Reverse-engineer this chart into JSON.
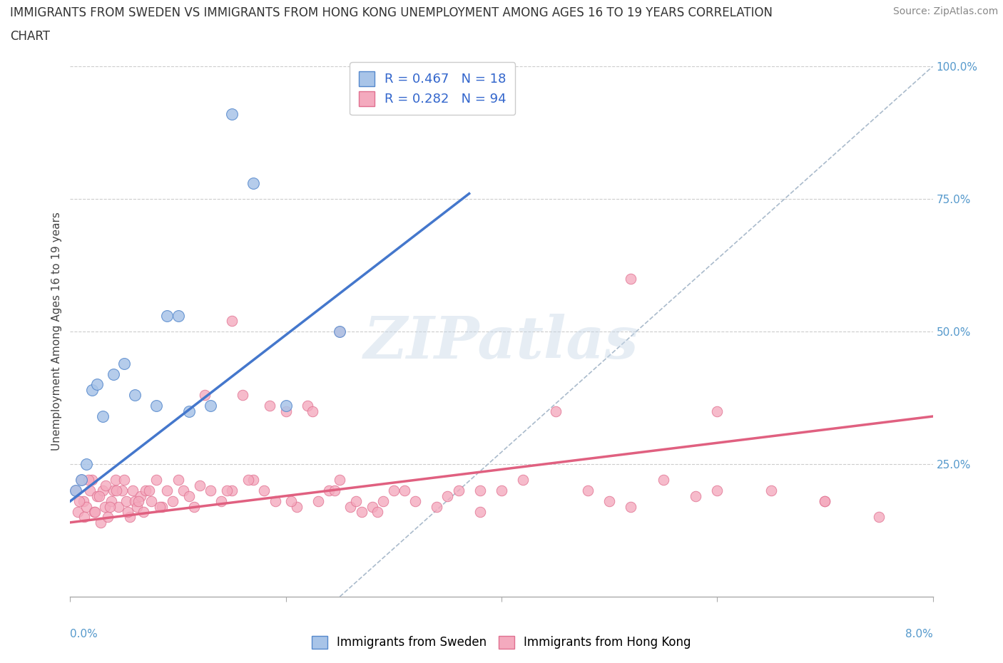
{
  "title_line1": "IMMIGRANTS FROM SWEDEN VS IMMIGRANTS FROM HONG KONG UNEMPLOYMENT AMONG AGES 16 TO 19 YEARS CORRELATION",
  "title_line2": "CHART",
  "source": "Source: ZipAtlas.com",
  "ylabel": "Unemployment Among Ages 16 to 19 years",
  "xlim": [
    0.0,
    8.0
  ],
  "ylim": [
    0.0,
    100.0
  ],
  "yticks": [
    0,
    25,
    50,
    75,
    100
  ],
  "ytick_labels": [
    "",
    "25.0%",
    "50.0%",
    "75.0%",
    "100.0%"
  ],
  "xtick_positions": [
    0.0,
    2.0,
    4.0,
    6.0,
    8.0
  ],
  "sweden_color": "#a8c4e8",
  "sweden_edge": "#5588cc",
  "hk_color": "#f4aabe",
  "hk_edge": "#e07090",
  "sweden_line_color": "#4477cc",
  "hk_line_color": "#e06080",
  "ref_line_color": "#aabbcc",
  "legend_sweden_label": "R = 0.467   N = 18",
  "legend_hk_label": "R = 0.282   N = 94",
  "sweden_scatter_x": [
    0.05,
    0.1,
    0.15,
    0.2,
    0.25,
    0.3,
    0.4,
    0.5,
    0.6,
    0.8,
    0.9,
    1.0,
    1.1,
    1.3,
    1.5,
    1.7,
    2.0,
    2.5
  ],
  "sweden_scatter_y": [
    20,
    22,
    25,
    39,
    40,
    34,
    42,
    44,
    38,
    36,
    53,
    53,
    35,
    36,
    91,
    78,
    36,
    50
  ],
  "sweden_line_x0": 0.0,
  "sweden_line_y0": 18,
  "sweden_line_x1": 3.7,
  "sweden_line_y1": 76,
  "hk_line_x0": 0.0,
  "hk_line_y0": 14,
  "hk_line_x1": 8.0,
  "hk_line_y1": 34,
  "ref_line_x0": 2.5,
  "ref_line_y0": 0,
  "ref_line_x1": 8.0,
  "ref_line_y1": 100,
  "hk_scatter_x": [
    0.05,
    0.07,
    0.1,
    0.12,
    0.15,
    0.18,
    0.2,
    0.22,
    0.25,
    0.28,
    0.3,
    0.32,
    0.35,
    0.38,
    0.4,
    0.42,
    0.45,
    0.48,
    0.5,
    0.52,
    0.55,
    0.58,
    0.6,
    0.62,
    0.65,
    0.68,
    0.7,
    0.75,
    0.8,
    0.85,
    0.9,
    0.95,
    1.0,
    1.05,
    1.1,
    1.15,
    1.2,
    1.3,
    1.4,
    1.5,
    1.6,
    1.7,
    1.8,
    1.9,
    2.0,
    2.1,
    2.2,
    2.3,
    2.4,
    2.5,
    2.6,
    2.7,
    2.8,
    2.9,
    3.0,
    3.2,
    3.4,
    3.5,
    3.6,
    3.8,
    4.0,
    4.2,
    4.5,
    4.8,
    5.0,
    5.2,
    5.5,
    5.8,
    6.0,
    6.5,
    7.0,
    7.5,
    0.08,
    0.13,
    0.17,
    0.23,
    0.27,
    0.33,
    0.37,
    0.43,
    0.53,
    0.63,
    0.73,
    0.83,
    1.25,
    1.45,
    1.65,
    1.85,
    2.05,
    2.25,
    2.45,
    2.65,
    2.85,
    3.1
  ],
  "hk_scatter_y": [
    20,
    16,
    22,
    18,
    17,
    20,
    22,
    16,
    19,
    14,
    20,
    17,
    15,
    18,
    20,
    22,
    17,
    20,
    22,
    18,
    15,
    20,
    18,
    17,
    19,
    16,
    20,
    18,
    22,
    17,
    20,
    18,
    22,
    20,
    19,
    17,
    21,
    20,
    18,
    20,
    38,
    22,
    20,
    18,
    35,
    17,
    36,
    18,
    20,
    22,
    17,
    16,
    17,
    18,
    20,
    18,
    17,
    19,
    20,
    16,
    20,
    22,
    35,
    20,
    18,
    17,
    22,
    19,
    35,
    20,
    18,
    15,
    18,
    15,
    22,
    16,
    19,
    21,
    17,
    20,
    16,
    18,
    20,
    17,
    38,
    20,
    22,
    36,
    18,
    35,
    20,
    18,
    16,
    20
  ],
  "hk_scatter_extra_x": [
    6.0,
    7.0,
    3.8,
    5.2,
    1.5,
    2.5
  ],
  "hk_scatter_extra_y": [
    20,
    18,
    20,
    60,
    52,
    50
  ],
  "bg_color": "#ffffff",
  "grid_color": "#cccccc",
  "watermark_text": "ZIPatlas",
  "watermark_color": "#c8d8e8",
  "watermark_alpha": 0.45
}
